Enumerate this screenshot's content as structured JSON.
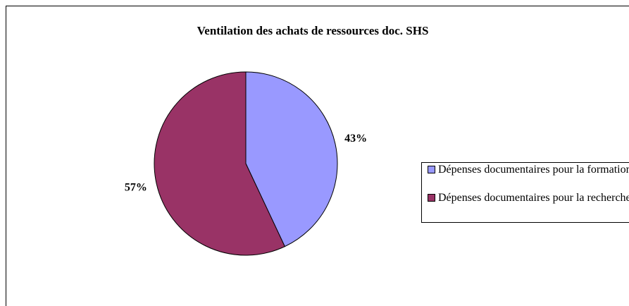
{
  "chart_data": {
    "type": "pie",
    "title": "Ventilation des achats de ressources doc. SHS",
    "categories": [
      "Dépenses documentaires pour la formation",
      "Dépenses documentaires pour la recherche"
    ],
    "values": [
      43,
      57
    ],
    "value_labels": [
      "43%",
      "57%"
    ],
    "colors": [
      "#9999ff",
      "#993366"
    ],
    "legend": "right"
  }
}
